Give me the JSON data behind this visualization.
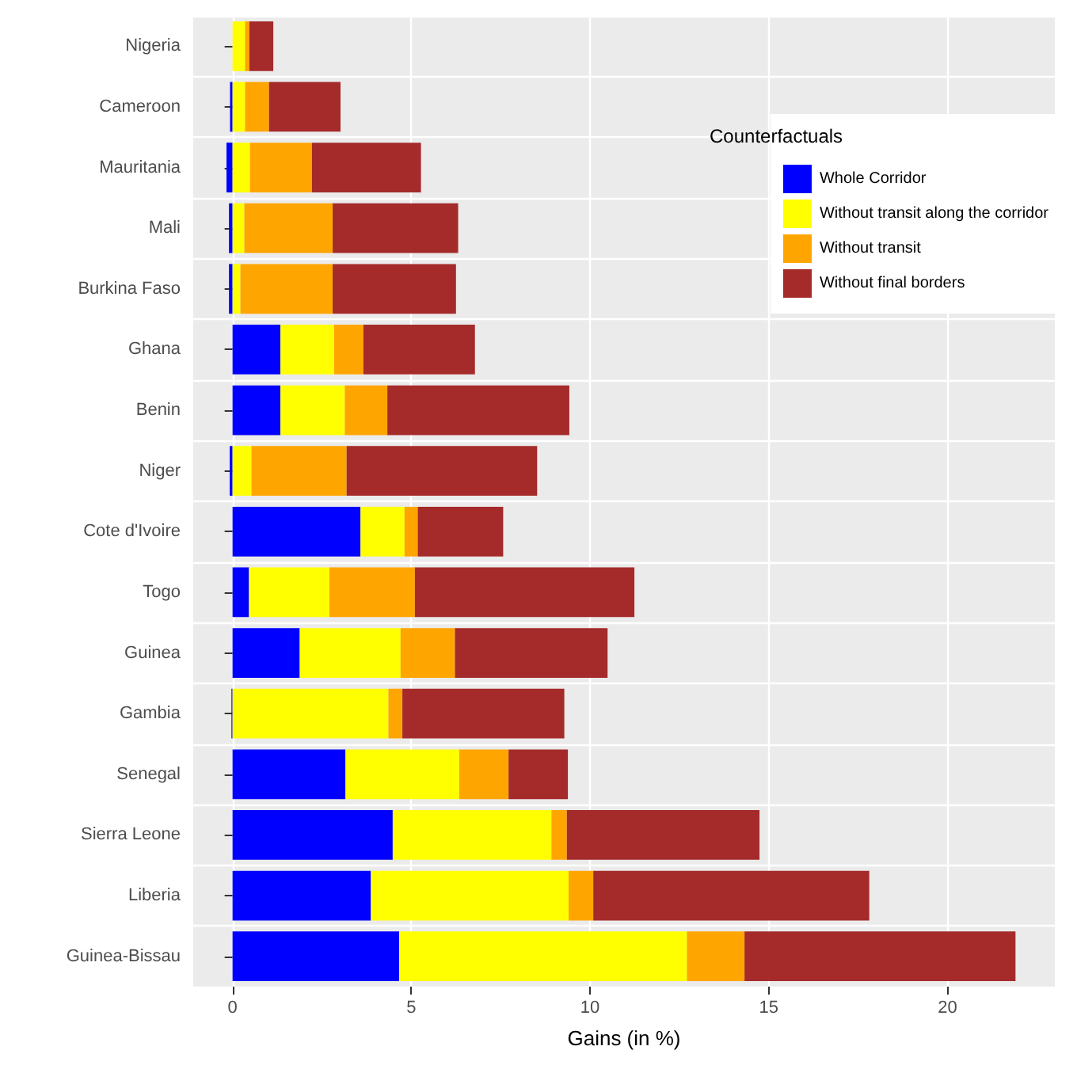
{
  "chart_data": {
    "type": "bar",
    "orientation": "horizontal",
    "stacked": true,
    "categories": [
      "Nigeria",
      "Cameroon",
      "Mauritania",
      "Mali",
      "Burkina Faso",
      "Ghana",
      "Benin",
      "Niger",
      "Cote d'Ivoire",
      "Togo",
      "Guinea",
      "Gambia",
      "Senegal",
      "Sierra Leone",
      "Liberia",
      "Guinea-Bissau"
    ],
    "series": [
      {
        "name": "Whole Corridor",
        "color": "#0000ff",
        "values": [
          0,
          -0.07,
          -0.17,
          -0.1,
          -0.1,
          1.34,
          1.34,
          -0.08,
          3.58,
          0.46,
          1.88,
          -0.03,
          3.16,
          4.48,
          3.87,
          4.66
        ]
      },
      {
        "name": "Without transit along the corridor",
        "color": "#ffff00",
        "values": [
          0.35,
          0.35,
          0.49,
          0.33,
          0.22,
          1.5,
          1.8,
          0.53,
          1.23,
          2.25,
          2.82,
          4.36,
          3.18,
          4.44,
          5.53,
          8.05
        ]
      },
      {
        "name": "Without transit",
        "color": "#ffa500",
        "values": [
          0.12,
          0.67,
          1.73,
          2.47,
          2.58,
          0.82,
          1.19,
          2.66,
          0.37,
          2.39,
          1.52,
          0.39,
          1.38,
          0.43,
          0.69,
          1.61
        ]
      },
      {
        "name": "Without final borders",
        "color": "#a52a2a",
        "values": [
          0.67,
          2.0,
          3.05,
          3.51,
          3.45,
          3.12,
          5.09,
          5.33,
          2.39,
          6.14,
          4.27,
          4.53,
          1.66,
          5.39,
          7.72,
          7.58
        ]
      }
    ],
    "xlabel": "Gains (in %)",
    "legend_title": "Counterfactuals",
    "xlim": [
      -1.1,
      23
    ],
    "xticks": [
      0,
      5,
      10,
      15,
      20
    ],
    "grid": true,
    "legend": "top right"
  }
}
